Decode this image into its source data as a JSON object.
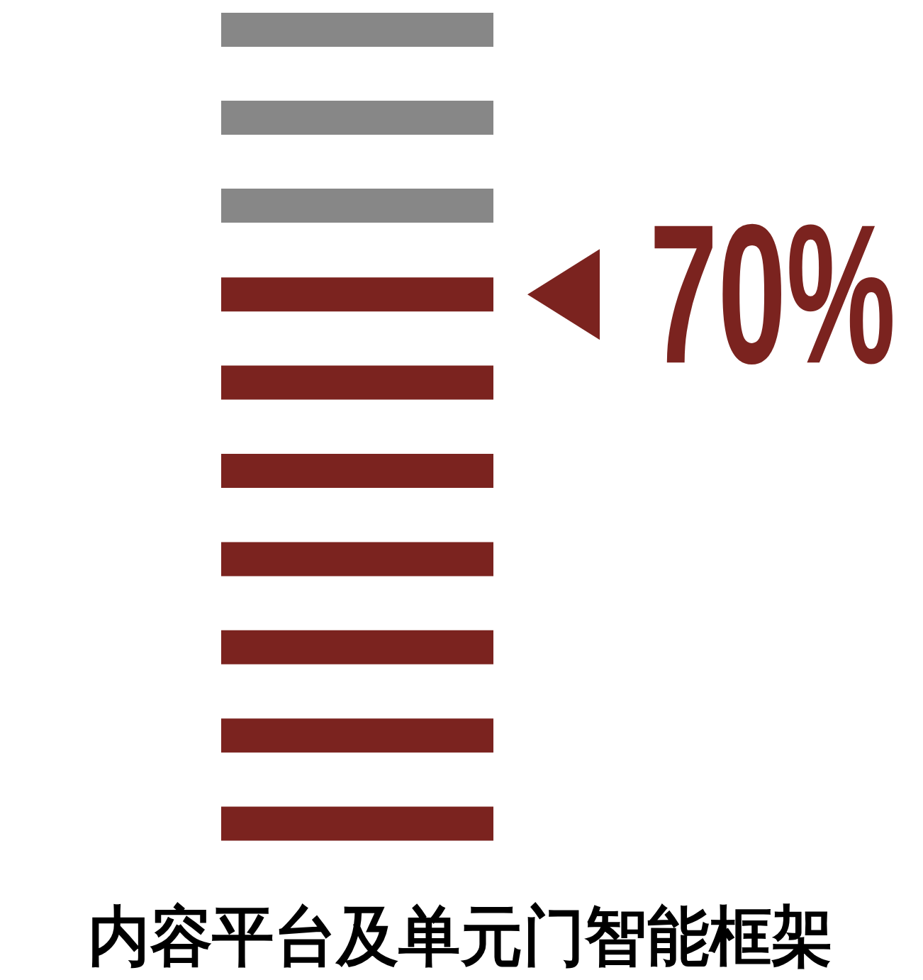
{
  "chart_data": {
    "type": "other",
    "title": "内容平台及单元门智能框架",
    "values": [
      70
    ],
    "value_labels": [
      "70%"
    ],
    "color": "#7b231f"
  }
}
